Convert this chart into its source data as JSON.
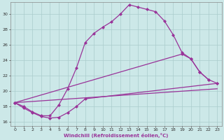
{
  "xlabel": "Windchill (Refroidissement éolien,°C)",
  "bg_color": "#cce8e8",
  "grid_color": "#aacccc",
  "line_color": "#993399",
  "xlim": [
    -0.5,
    23.5
  ],
  "ylim": [
    15.5,
    31.5
  ],
  "xticks": [
    0,
    1,
    2,
    3,
    4,
    5,
    6,
    7,
    8,
    9,
    10,
    11,
    12,
    13,
    14,
    15,
    16,
    17,
    18,
    19,
    20,
    21,
    22,
    23
  ],
  "yticks": [
    16,
    18,
    20,
    22,
    24,
    26,
    28,
    30
  ],
  "curve1_x": [
    0,
    1,
    2,
    3,
    4,
    5,
    6,
    7,
    8,
    9,
    10,
    11,
    12,
    13,
    14,
    15,
    16,
    17,
    18,
    19,
    20,
    21,
    22
  ],
  "curve1_y": [
    18.5,
    18.0,
    17.3,
    16.8,
    16.8,
    18.2,
    20.3,
    23.0,
    26.3,
    27.5,
    28.3,
    29.0,
    30.0,
    31.2,
    30.9,
    30.6,
    30.3,
    29.1,
    27.3,
    25.0,
    24.2,
    22.5,
    21.5
  ],
  "curve2_x": [
    0,
    1,
    2,
    3,
    4,
    5,
    6,
    7,
    8,
    23
  ],
  "curve2_y": [
    18.5,
    17.8,
    17.2,
    16.7,
    16.5,
    16.6,
    17.2,
    18.0,
    19.0,
    21.0
  ],
  "curve3_x": [
    0,
    19,
    20,
    21,
    22,
    23
  ],
  "curve3_y": [
    18.5,
    24.8,
    24.2,
    22.5,
    21.5,
    21.0
  ],
  "curve4_x": [
    0,
    23
  ],
  "curve4_y": [
    18.5,
    20.3
  ]
}
